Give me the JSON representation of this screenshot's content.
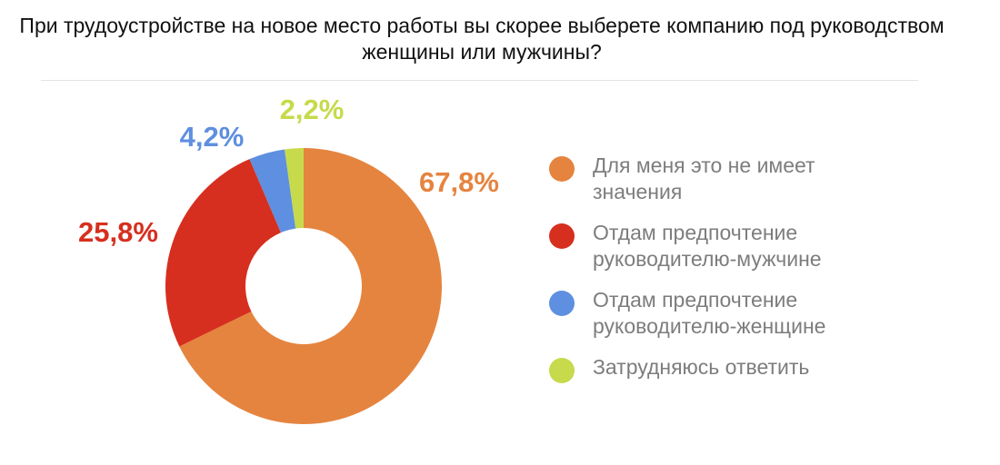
{
  "chart_data": {
    "type": "pie",
    "donut": true,
    "title": "При трудоустройстве на новое место работы вы скорее выберете компанию под руководством женщины или мужчины?",
    "legend_position": "right",
    "slices": [
      {
        "label": "Для меня это не имеет значения",
        "value": 67.8,
        "display": "67,8%",
        "color": "#E5843F"
      },
      {
        "label": "Отдам предпочтение руководителю-мужчине",
        "value": 25.8,
        "display": "25,8%",
        "color": "#D62F1F"
      },
      {
        "label": "Отдам предпочтение руководителю-женщине",
        "value": 4.2,
        "display": "4,2%",
        "color": "#5E8FE0"
      },
      {
        "label": "Затрудняюсь ответить",
        "value": 2.2,
        "display": "2,2%",
        "color": "#C6DA4B"
      }
    ]
  }
}
